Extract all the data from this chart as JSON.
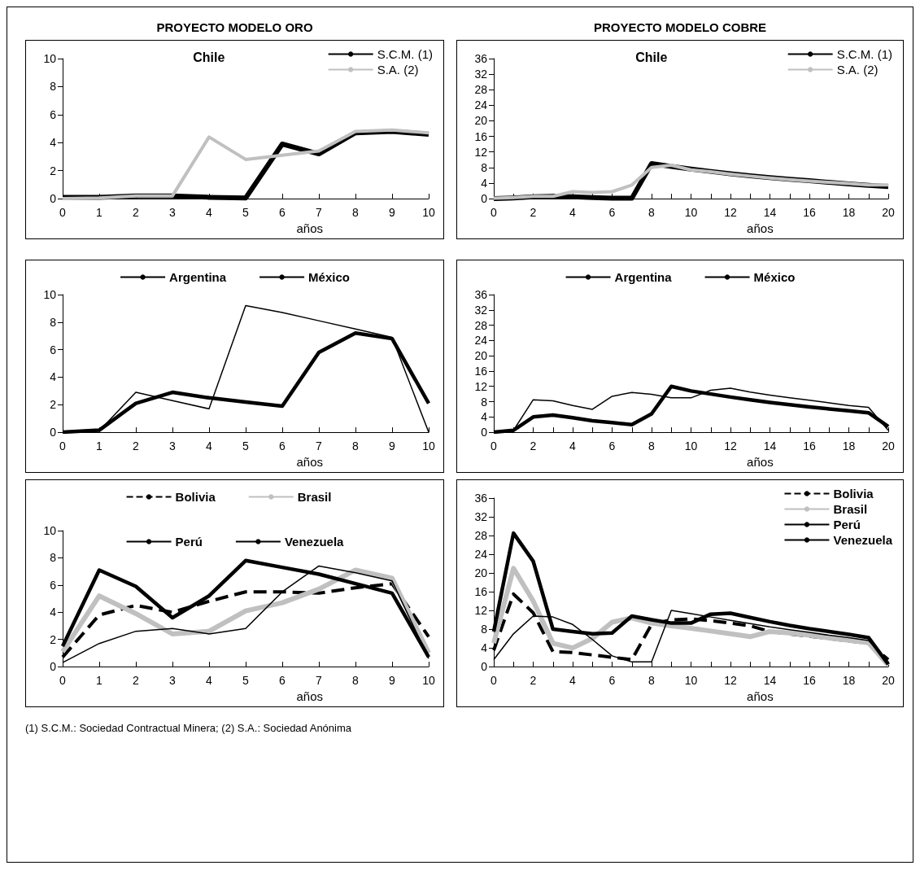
{
  "chart_data": [
    {
      "type": "line",
      "title": "PROYECTO MODELO ORO",
      "annotations": [
        "Chile"
      ],
      "xlabel": "años",
      "x": [
        0,
        1,
        2,
        3,
        4,
        5,
        6,
        7,
        8,
        9,
        10
      ],
      "xlim": [
        0,
        10
      ],
      "xticks": [
        0,
        1,
        2,
        3,
        4,
        5,
        6,
        7,
        8,
        9,
        10
      ],
      "ylim": [
        0,
        10
      ],
      "yticks": [
        0,
        2,
        4,
        6,
        8,
        10
      ],
      "grid": false,
      "legend": "top right",
      "marker": "none",
      "series": [
        {
          "name": "S.C.M. (1)",
          "color": "#000000",
          "values": [
            0.1,
            0.1,
            0.2,
            0.2,
            0.1,
            0.05,
            3.9,
            3.2,
            4.7,
            4.8,
            4.6
          ]
        },
        {
          "name": "S.A. (2)",
          "color": "#c0c0c0",
          "values": [
            0,
            0.05,
            0.2,
            0.2,
            4.4,
            2.8,
            3.1,
            3.4,
            4.8,
            4.9,
            4.7
          ]
        }
      ]
    },
    {
      "type": "line",
      "title": "PROYECTO MODELO COBRE",
      "annotations": [
        "Chile"
      ],
      "xlabel": "años",
      "x": [
        0,
        1,
        2,
        3,
        4,
        5,
        6,
        7,
        8,
        9,
        10,
        11,
        12,
        13,
        14,
        15,
        16,
        17,
        18,
        19,
        20
      ],
      "xlim": [
        0,
        20
      ],
      "xticks": [
        0,
        {
          "value": 1,
          "label": null
        },
        2,
        {
          "value": 3,
          "label": null
        },
        4,
        {
          "value": 5,
          "label": null
        },
        6,
        {
          "value": 7,
          "label": null
        },
        8,
        {
          "value": 9,
          "label": null
        },
        10,
        {
          "value": 11,
          "label": null
        },
        12,
        {
          "value": 13,
          "label": null
        },
        14,
        {
          "value": 15,
          "label": null
        },
        16,
        {
          "value": 17,
          "label": null
        },
        18,
        {
          "value": 19,
          "label": null
        },
        20
      ],
      "ylim": [
        0,
        36
      ],
      "yticks": [
        0,
        4,
        8,
        12,
        16,
        20,
        24,
        28,
        32,
        36
      ],
      "grid": false,
      "legend": "top right",
      "marker": "none",
      "series": [
        {
          "name": "S.C.M. (1)",
          "color": "#000000",
          "values": [
            0,
            0.2,
            0.5,
            0.6,
            0.5,
            0.3,
            0.1,
            0.1,
            9,
            8.3,
            7.6,
            7,
            6.4,
            5.9,
            5.4,
            5,
            4.6,
            4.2,
            3.8,
            3.4,
            3.1
          ]
        },
        {
          "name": "S.A. (2)",
          "color": "#c0c0c0",
          "values": [
            0.1,
            0.3,
            0.6,
            0.6,
            1.8,
            1.6,
            1.8,
            3.5,
            8,
            8.6,
            7.4,
            6.9,
            6.3,
            5.8,
            5.3,
            4.9,
            4.5,
            4.2,
            3.9,
            3.5,
            3.5
          ]
        }
      ]
    },
    {
      "type": "line",
      "xlabel": "años",
      "x": [
        0,
        1,
        2,
        3,
        4,
        5,
        6,
        7,
        8,
        9,
        10
      ],
      "xlim": [
        0,
        10
      ],
      "xticks": [
        0,
        1,
        2,
        3,
        4,
        5,
        6,
        7,
        8,
        9,
        10
      ],
      "ylim": [
        0,
        10
      ],
      "yticks": [
        0,
        2,
        4,
        6,
        8,
        10
      ],
      "grid": false,
      "legend": "top",
      "marker": "none",
      "series": [
        {
          "name": "Argentina",
          "color": "#000000",
          "values": [
            0,
            0.15,
            2.1,
            2.9,
            2.5,
            2.2,
            1.9,
            5.8,
            7.2,
            6.8,
            2.1
          ]
        },
        {
          "name": "México",
          "color": "#000000",
          "values": [
            0,
            0.1,
            2.9,
            2.3,
            1.7,
            9.2,
            8.7,
            8.1,
            7.5,
            6.9,
            0
          ]
        }
      ]
    },
    {
      "type": "line",
      "xlabel": "años",
      "x": [
        0,
        1,
        2,
        3,
        4,
        5,
        6,
        7,
        8,
        9,
        10,
        11,
        12,
        13,
        14,
        15,
        16,
        17,
        18,
        19,
        20
      ],
      "xlim": [
        0,
        20
      ],
      "xticks": [
        0,
        {
          "value": 1,
          "label": null
        },
        2,
        {
          "value": 3,
          "label": null
        },
        4,
        {
          "value": 5,
          "label": null
        },
        6,
        {
          "value": 7,
          "label": null
        },
        8,
        {
          "value": 9,
          "label": null
        },
        10,
        {
          "value": 11,
          "label": null
        },
        12,
        {
          "value": 13,
          "label": null
        },
        14,
        {
          "value": 15,
          "label": null
        },
        16,
        {
          "value": 17,
          "label": null
        },
        18,
        {
          "value": 19,
          "label": null
        },
        20
      ],
      "ylim": [
        0,
        36
      ],
      "yticks": [
        0,
        4,
        8,
        12,
        16,
        20,
        24,
        28,
        32,
        36
      ],
      "grid": false,
      "legend": "top",
      "marker": "none",
      "series": [
        {
          "name": "Argentina",
          "color": "#000000",
          "values": [
            0,
            0.5,
            4,
            4.5,
            3.8,
            3,
            2.5,
            2,
            4.8,
            12,
            10.8,
            10,
            9.2,
            8.5,
            7.8,
            7.2,
            6.6,
            6.1,
            5.6,
            5.1,
            1.5
          ]
        },
        {
          "name": "México",
          "color": "#000000",
          "values": [
            0,
            0.5,
            8.5,
            8.2,
            7,
            6,
            9.4,
            10.4,
            9.9,
            9,
            9,
            11,
            11.5,
            10.5,
            9.7,
            9,
            8.4,
            7.7,
            7,
            6.5,
            0.5
          ]
        }
      ]
    },
    {
      "type": "line",
      "xlabel": "años",
      "x": [
        0,
        1,
        2,
        3,
        4,
        5,
        6,
        7,
        8,
        9,
        10
      ],
      "xlim": [
        0,
        10
      ],
      "xticks": [
        0,
        1,
        2,
        3,
        4,
        5,
        6,
        7,
        8,
        9,
        10
      ],
      "ylim": [
        0,
        10
      ],
      "yticks": [
        0,
        2,
        4,
        6,
        8,
        10
      ],
      "grid": false,
      "legend": "top",
      "marker": "none",
      "series": [
        {
          "name": "Bolivia",
          "color": "#000000",
          "line_style": "dashed",
          "values": [
            0.7,
            3.8,
            4.5,
            4,
            4.8,
            5.5,
            5.5,
            5.4,
            5.8,
            6.1,
            2.2
          ]
        },
        {
          "name": "Brasil",
          "color": "#c0c0c0",
          "values": [
            1.1,
            5.2,
            3.9,
            2.4,
            2.6,
            4.1,
            4.7,
            5.7,
            7.1,
            6.5,
            1
          ]
        },
        {
          "name": "Perú",
          "color": "#000000",
          "values": [
            0.3,
            1.7,
            2.6,
            2.8,
            2.4,
            2.8,
            5.5,
            7.4,
            6.9,
            6.3,
            0.6
          ]
        },
        {
          "name": "Venezuela",
          "color": "#000000",
          "values": [
            1.5,
            7.1,
            5.9,
            3.6,
            5.2,
            7.8,
            7.3,
            6.8,
            6.1,
            5.4,
            0.7
          ]
        }
      ]
    },
    {
      "type": "line",
      "xlabel": "años",
      "x": [
        0,
        1,
        2,
        3,
        4,
        5,
        6,
        7,
        8,
        9,
        10,
        11,
        12,
        13,
        14,
        15,
        16,
        17,
        18,
        19,
        20
      ],
      "xlim": [
        0,
        20
      ],
      "xticks": [
        0,
        {
          "value": 1,
          "label": null
        },
        2,
        {
          "value": 3,
          "label": null
        },
        4,
        {
          "value": 5,
          "label": null
        },
        6,
        {
          "value": 7,
          "label": null
        },
        8,
        {
          "value": 9,
          "label": null
        },
        10,
        {
          "value": 11,
          "label": null
        },
        12,
        {
          "value": 13,
          "label": null
        },
        14,
        {
          "value": 15,
          "label": null
        },
        16,
        {
          "value": 17,
          "label": null
        },
        18,
        {
          "value": 19,
          "label": null
        },
        20
      ],
      "ylim": [
        0,
        36
      ],
      "yticks": [
        0,
        4,
        8,
        12,
        16,
        20,
        24,
        28,
        32,
        36
      ],
      "grid": false,
      "legend": "top right",
      "marker": "none",
      "series": [
        {
          "name": "Bolivia",
          "color": "#000000",
          "line_style": "dashed",
          "values": [
            3.5,
            15.5,
            11.5,
            3.2,
            3,
            2.5,
            2,
            1.5,
            9,
            10,
            10.2,
            9.8,
            9.3,
            8.7,
            7.5,
            7,
            6.5,
            6,
            5.5,
            5,
            1.5
          ]
        },
        {
          "name": "Brasil",
          "color": "#c0c0c0",
          "values": [
            5,
            21,
            14,
            5,
            4,
            6,
            9.5,
            10.4,
            9.3,
            8.7,
            8.2,
            7.6,
            7,
            6.4,
            7.5,
            7.2,
            6.7,
            6.1,
            5.6,
            5.1,
            0.3
          ]
        },
        {
          "name": "Perú",
          "color": "#000000",
          "values": [
            1.5,
            7,
            10.8,
            10.6,
            9,
            5.8,
            2.3,
            1,
            1,
            12,
            11.3,
            10.6,
            9.9,
            9.2,
            8.5,
            7.9,
            7.3,
            6.7,
            6.2,
            5.6,
            1
          ]
        },
        {
          "name": "Venezuela",
          "color": "#000000",
          "values": [
            7.5,
            28.5,
            22.5,
            8,
            7.5,
            7,
            7.2,
            10.8,
            10,
            9.3,
            9.3,
            11.2,
            11.4,
            10.5,
            9.6,
            8.8,
            8.1,
            7.5,
            6.9,
            6.2,
            0.5
          ]
        }
      ]
    },
    {
      "type": "other",
      "annotations": [
        "(1) S.C.M.: Sociedad Contractual Minera; (2) S.A.: Sociedad Anónima"
      ]
    }
  ]
}
